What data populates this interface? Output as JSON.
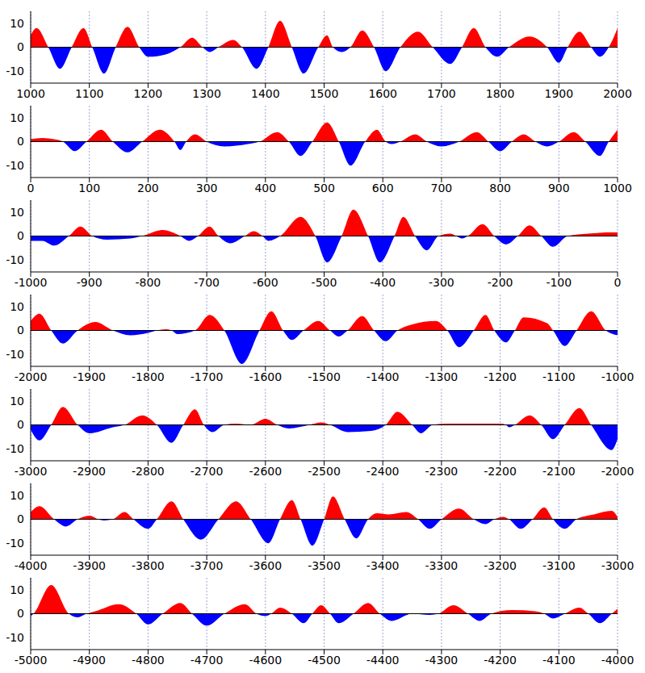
{
  "chart_data": [
    {
      "type": "area",
      "grid": "x",
      "xlim": [
        1000,
        2000
      ],
      "xticks": [
        1000,
        1100,
        1200,
        1300,
        1400,
        1500,
        1600,
        1700,
        1800,
        1900,
        2000
      ],
      "ylim": [
        -15,
        15
      ],
      "yticks": [
        -10,
        0,
        10
      ],
      "x": [
        1000,
        1010,
        1030,
        1050,
        1070,
        1090,
        1105,
        1125,
        1145,
        1165,
        1185,
        1200,
        1230,
        1255,
        1275,
        1293,
        1305,
        1320,
        1345,
        1360,
        1385,
        1405,
        1425,
        1445,
        1465,
        1490,
        1505,
        1515,
        1530,
        1545,
        1565,
        1585,
        1605,
        1630,
        1660,
        1685,
        1715,
        1735,
        1755,
        1775,
        1795,
        1815,
        1850,
        1880,
        1900,
        1915,
        1935,
        1955,
        1970,
        1985,
        2000
      ],
      "values": [
        5,
        8,
        0,
        -9,
        0,
        8,
        0,
        -11,
        0,
        8.5,
        0,
        -4,
        -3,
        0,
        4,
        0,
        -2,
        0,
        3,
        0,
        -9,
        0,
        11,
        0,
        -11,
        0,
        5,
        0,
        -2,
        0,
        7,
        0,
        -10,
        0,
        6.5,
        0,
        -7,
        0,
        8,
        0,
        -4,
        0,
        4.5,
        0,
        -6.5,
        0,
        6.5,
        0,
        -4,
        0,
        8
      ]
    },
    {
      "type": "area",
      "grid": "x",
      "xlim": [
        0,
        1000
      ],
      "xticks": [
        0,
        100,
        200,
        300,
        400,
        500,
        600,
        700,
        800,
        900,
        1000
      ],
      "ylim": [
        -15,
        15
      ],
      "yticks": [
        -10,
        0,
        10
      ],
      "x": [
        0,
        20,
        40,
        55,
        75,
        95,
        120,
        140,
        165,
        190,
        220,
        245,
        255,
        265,
        280,
        300,
        330,
        370,
        390,
        420,
        440,
        460,
        480,
        505,
        525,
        545,
        570,
        590,
        605,
        615,
        630,
        655,
        675,
        700,
        730,
        760,
        780,
        800,
        820,
        840,
        860,
        880,
        900,
        925,
        945,
        970,
        985,
        1000
      ],
      "values": [
        1,
        1.5,
        1,
        0,
        -4,
        0,
        5,
        0,
        -4.5,
        0,
        5,
        0,
        -3.5,
        0,
        3,
        0,
        -2,
        -1,
        0,
        4,
        0,
        -6,
        0,
        8,
        0,
        -10,
        0,
        5,
        0,
        -1,
        0,
        3,
        0,
        -2,
        0,
        4,
        0,
        -4,
        0,
        3,
        0,
        -2,
        0,
        4,
        0,
        -6,
        0,
        5
      ]
    },
    {
      "type": "area",
      "grid": "x",
      "xlim": [
        -1000,
        0
      ],
      "xticks": [
        -1000,
        -900,
        -800,
        -700,
        -600,
        -500,
        -400,
        -300,
        -200,
        -100,
        0
      ],
      "ylim": [
        -15,
        15
      ],
      "yticks": [
        -10,
        0,
        10
      ],
      "x": [
        -1000,
        -980,
        -960,
        -935,
        -915,
        -895,
        -870,
        -830,
        -810,
        -775,
        -745,
        -730,
        -715,
        -695,
        -680,
        -660,
        -635,
        -620,
        -605,
        -595,
        -575,
        -540,
        -515,
        -495,
        -470,
        -450,
        -425,
        -405,
        -380,
        -365,
        -345,
        -325,
        -305,
        -285,
        -275,
        -265,
        -255,
        -230,
        -210,
        -190,
        -170,
        -150,
        -130,
        -110,
        -85,
        -50,
        -10,
        0
      ],
      "values": [
        -2,
        -2,
        -4,
        0,
        4,
        0,
        -1.5,
        -1,
        0,
        2.5,
        0,
        -2,
        0,
        4,
        0,
        -3,
        0,
        2,
        0,
        -2,
        0,
        8,
        0,
        -11,
        0,
        11,
        0,
        -11,
        0,
        8,
        0,
        -6,
        0,
        1,
        0,
        -1,
        0,
        5,
        0,
        -3.5,
        0,
        4.5,
        0,
        -4.5,
        0,
        1,
        1.5,
        1.5
      ]
    },
    {
      "type": "area",
      "grid": "x",
      "xlim": [
        -2000,
        -1000
      ],
      "xticks": [
        -2000,
        -1900,
        -1800,
        -1700,
        -1600,
        -1500,
        -1400,
        -1300,
        -1200,
        -1100,
        -1000
      ],
      "ylim": [
        -15,
        15
      ],
      "yticks": [
        -10,
        0,
        10
      ],
      "x": [
        -2000,
        -1985,
        -1965,
        -1945,
        -1920,
        -1890,
        -1860,
        -1830,
        -1800,
        -1785,
        -1770,
        -1760,
        -1750,
        -1720,
        -1695,
        -1670,
        -1640,
        -1610,
        -1590,
        -1570,
        -1555,
        -1535,
        -1510,
        -1490,
        -1475,
        -1460,
        -1435,
        -1415,
        -1395,
        -1375,
        -1350,
        -1310,
        -1290,
        -1270,
        -1245,
        -1225,
        -1210,
        -1190,
        -1175,
        -1160,
        -1120,
        -1110,
        -1090,
        -1070,
        -1045,
        -1020,
        -1000
      ],
      "values": [
        4,
        7,
        0,
        -5.5,
        0,
        3.5,
        0,
        -2,
        -1,
        0,
        0.5,
        0,
        -1.5,
        0,
        6.5,
        0,
        -14,
        0,
        8,
        0,
        -4,
        0,
        4,
        0,
        -2.5,
        0,
        6,
        0,
        -4.5,
        0,
        2.5,
        4,
        0,
        -7,
        0,
        6.5,
        0,
        -5,
        0,
        5.5,
        3,
        0,
        -6.5,
        0,
        8,
        0,
        -2
      ]
    },
    {
      "type": "area",
      "grid": "x",
      "xlim": [
        -3000,
        -2000
      ],
      "xticks": [
        -3000,
        -2900,
        -2800,
        -2700,
        -2600,
        -2500,
        -2400,
        -2300,
        -2200,
        -2100,
        -2000
      ],
      "ylim": [
        -15,
        15
      ],
      "yticks": [
        -10,
        0,
        10
      ],
      "x": [
        -3000,
        -2985,
        -2965,
        -2945,
        -2920,
        -2900,
        -2860,
        -2840,
        -2810,
        -2785,
        -2760,
        -2740,
        -2720,
        -2705,
        -2690,
        -2670,
        -2650,
        -2625,
        -2600,
        -2580,
        -2560,
        -2525,
        -2505,
        -2490,
        -2460,
        -2420,
        -2395,
        -2375,
        -2350,
        -2335,
        -2315,
        -2290,
        -2230,
        -2200,
        -2190,
        -2185,
        -2175,
        -2150,
        -2130,
        -2110,
        -2090,
        -2065,
        -2045,
        -2010,
        -2000
      ],
      "values": [
        -2,
        -6.5,
        0,
        7.5,
        0,
        -3.5,
        -1,
        0,
        4,
        0,
        -7.5,
        0,
        6.5,
        0,
        -3,
        0,
        0.5,
        0,
        2.5,
        0,
        -1.5,
        0,
        1,
        0,
        -3,
        -2.5,
        0,
        5.5,
        0,
        -3.5,
        0,
        0.5,
        0.5,
        0.5,
        0,
        -1,
        0,
        4,
        0,
        -6,
        0,
        7,
        0,
        -10.5,
        -6
      ]
    },
    {
      "type": "area",
      "grid": "x",
      "xlim": [
        -4000,
        -3000
      ],
      "xticks": [
        -4000,
        -3900,
        -3800,
        -3700,
        -3600,
        -3500,
        -3400,
        -3300,
        -3200,
        -3100,
        -3000
      ],
      "ylim": [
        -15,
        15
      ],
      "yticks": [
        -10,
        0,
        10
      ],
      "x": [
        -4000,
        -3985,
        -3960,
        -3940,
        -3920,
        -3900,
        -3885,
        -3875,
        -3860,
        -3840,
        -3825,
        -3800,
        -3785,
        -3760,
        -3740,
        -3710,
        -3680,
        -3650,
        -3625,
        -3595,
        -3575,
        -3555,
        -3540,
        -3520,
        -3500,
        -3485,
        -3465,
        -3445,
        -3425,
        -3410,
        -3390,
        -3360,
        -3340,
        -3320,
        -3300,
        -3270,
        -3245,
        -3225,
        -3210,
        -3195,
        -3185,
        -3165,
        -3145,
        -3125,
        -3110,
        -3090,
        -3070,
        -3040,
        -3010,
        -3000
      ],
      "values": [
        3,
        5.5,
        0,
        -3,
        0,
        1.5,
        0,
        -0.5,
        0,
        3,
        0,
        -4,
        0,
        7.5,
        0,
        -8.5,
        0,
        7.5,
        0,
        -10,
        0,
        8,
        0,
        -11,
        0,
        9.5,
        0,
        -8,
        0,
        2.5,
        2,
        3,
        0,
        -4,
        0,
        4.5,
        0,
        -2,
        0,
        1,
        0,
        -4,
        0,
        5,
        0,
        -4,
        0,
        2,
        3.5,
        1
      ]
    },
    {
      "type": "area",
      "grid": "x",
      "xlim": [
        -5000,
        -4000
      ],
      "xticks": [
        -5000,
        -4900,
        -4800,
        -4700,
        -4600,
        -4500,
        -4400,
        -4300,
        -4200,
        -4100,
        -4000
      ],
      "ylim": [
        -15,
        15
      ],
      "yticks": [
        -10,
        0,
        10
      ],
      "x": [
        -5000,
        -4995,
        -4965,
        -4935,
        -4920,
        -4905,
        -4890,
        -4850,
        -4820,
        -4800,
        -4775,
        -4745,
        -4725,
        -4700,
        -4670,
        -4635,
        -4615,
        -4600,
        -4590,
        -4575,
        -4555,
        -4535,
        -4520,
        -4505,
        -4490,
        -4475,
        -4450,
        -4425,
        -4405,
        -4385,
        -4350,
        -4320,
        -4305,
        -4280,
        -4255,
        -4235,
        -4215,
        -4180,
        -4140,
        -4125,
        -4110,
        -4090,
        -4065,
        -4050,
        -4030,
        -4010,
        -4000
      ],
      "values": [
        -1,
        0,
        12,
        0,
        -1.5,
        0,
        1,
        4,
        0,
        -4.5,
        0,
        4.5,
        0,
        -5,
        0,
        4,
        0,
        -1,
        0,
        2.5,
        0,
        -4,
        0,
        3.5,
        0,
        -4,
        0,
        4.5,
        0,
        -3,
        0,
        -0.5,
        0,
        3.5,
        0,
        -3,
        0,
        1.5,
        1,
        0,
        -2,
        0,
        2.5,
        0,
        -4,
        0,
        2
      ]
    }
  ]
}
